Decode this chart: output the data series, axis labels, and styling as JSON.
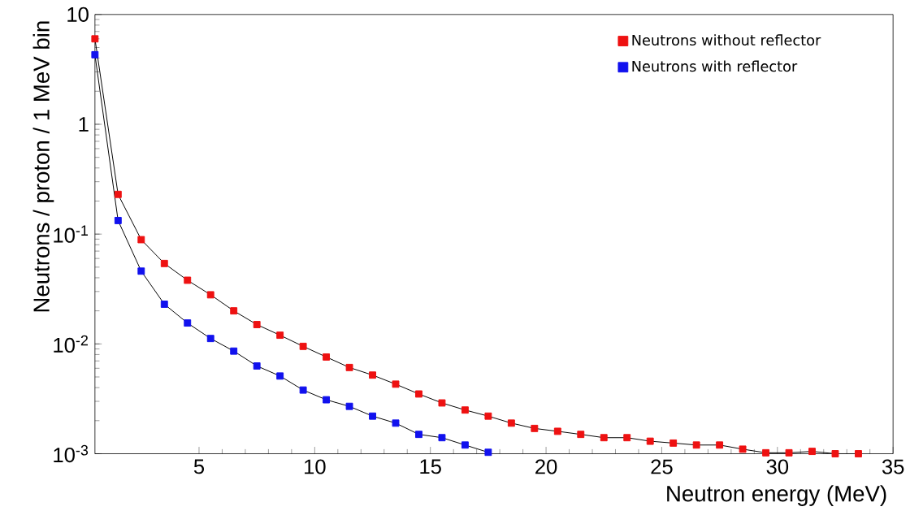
{
  "chart_data": {
    "type": "line",
    "xlabel": "Neutron energy (MeV)",
    "ylabel": "Neutrons / proton / 1 MeV bin",
    "x": [
      0.5,
      1.5,
      2.5,
      3.5,
      4.5,
      5.5,
      6.5,
      7.5,
      8.5,
      9.5,
      10.5,
      11.5,
      12.5,
      13.5,
      14.5,
      15.5,
      16.5,
      17.5,
      18.5,
      19.5,
      20.5,
      21.5,
      22.5,
      23.5,
      24.5,
      25.5,
      26.5,
      27.5,
      28.5,
      29.5,
      30.5,
      31.5,
      32.5,
      33.5
    ],
    "series": [
      {
        "name": "Neutrons without reflector",
        "color": "#ee1111",
        "values": [
          6.0,
          0.23,
          0.089,
          0.054,
          0.038,
          0.028,
          0.02,
          0.015,
          0.012,
          0.0095,
          0.0076,
          0.0061,
          0.0052,
          0.0043,
          0.0035,
          0.0029,
          0.0025,
          0.0022,
          0.0019,
          0.0017,
          0.0016,
          0.0015,
          0.0014,
          0.0014,
          0.0013,
          0.00125,
          0.0012,
          0.0012,
          0.0011,
          0.00102,
          0.00102,
          0.00105,
          0.001,
          0.001
        ]
      },
      {
        "name": "Neutrons with reflector",
        "color": "#1111ee",
        "values": [
          4.3,
          0.133,
          0.046,
          0.023,
          0.0155,
          0.0112,
          0.0086,
          0.0063,
          0.0051,
          0.0038,
          0.0031,
          0.0027,
          0.0022,
          0.0019,
          0.0015,
          0.0014,
          0.0012,
          0.00103,
          null,
          null,
          null,
          null,
          null,
          null,
          null,
          null,
          null,
          null,
          null,
          null,
          null,
          null,
          null,
          null
        ]
      }
    ],
    "xlim": [
      0.5,
      35
    ],
    "xticks": [
      5,
      10,
      15,
      20,
      25,
      30,
      35
    ],
    "ylim": [
      0.001,
      10
    ],
    "log": true,
    "yticks": [
      {
        "value": 0.001,
        "label": "10$^{-3}$"
      },
      {
        "value": 0.01,
        "label": "10$^{-2}$"
      },
      {
        "value": 0.1,
        "label": "10$^{-1}$"
      },
      1,
      10
    ],
    "marker": "square",
    "legend": "top right",
    "grid": false
  }
}
